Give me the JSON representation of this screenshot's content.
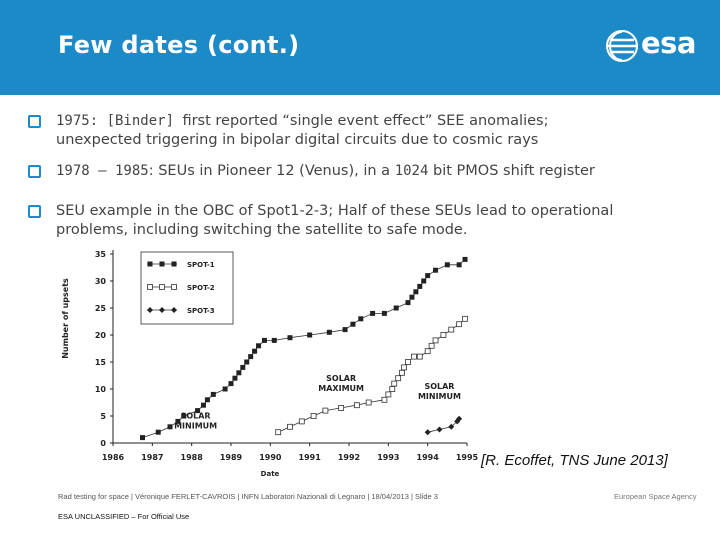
{
  "slide": {
    "title": "Few dates (cont.)",
    "logo_text": "esa",
    "bullets": [
      {
        "lines": [
          [
            {
              "t": "1975: [Binder] ",
              "mono": true
            },
            {
              "t": "first reported “single event effect” SEE anomalies;",
              "mono": false
            }
          ],
          [
            {
              "t": "unexpected triggering in bipolar digital circuits due to cosmic rays",
              "mono": false
            }
          ]
        ]
      },
      {
        "lines": [
          [
            {
              "t": "1978 – 1985",
              "mono": true
            },
            {
              "t": ": SEUs in Pioneer 12 (Venus), in a ",
              "mono": false
            },
            {
              "t": "1024",
              "mono": true
            },
            {
              "t": " bit PMOS shift register",
              "mono": false
            }
          ]
        ]
      },
      {
        "lines": [
          [
            {
              "t": "SEU example in the OBC of Spot1-2-3; Half of these SEUs lead to operational",
              "mono": false
            }
          ],
          [
            {
              "t": "problems, including switching the satellite to safe mode.",
              "mono": false
            }
          ]
        ]
      }
    ],
    "citation": "[R. Ecoffet, TNS June 2013]",
    "footer_left": "Rad testing for space | Véronique FERLET-CAVROIS | INFN Laboratori Nazionali di Legnaro | 18/04/2013 | Slide 3",
    "footer_right": "European Space Agency",
    "classification": "ESA UNCLASSIFIED – For Official Use",
    "colors": {
      "header": "#1d8ac8",
      "bullet_box": "#1d8ac8",
      "text": "#444444"
    },
    "icons": {
      "logo": "esa-logo-icon",
      "bullet": "square-bullet-icon"
    }
  },
  "chart_data": {
    "type": "line",
    "xlabel": "Date",
    "ylabel": "Number of upsets",
    "x_tick_labels": [
      "1986",
      "1987",
      "1988",
      "1989",
      "1990",
      "1991",
      "1992",
      "1993",
      "1994",
      "1995"
    ],
    "xlim": [
      1986,
      1995
    ],
    "ylim": [
      0,
      35
    ],
    "y_tick_labels": [
      "0",
      "5",
      "10",
      "15",
      "20",
      "25",
      "30",
      "35"
    ],
    "legend_position": "top-left",
    "grid": false,
    "annotations": [
      {
        "text": "SOLAR\nMINIMUM",
        "x": 1988.1,
        "y": 4.5
      },
      {
        "text": "SOLAR\nMAXIMUM",
        "x": 1991.8,
        "y": 11.5
      },
      {
        "text": "SOLAR\nMINIMUM",
        "x": 1994.3,
        "y": 10
      }
    ],
    "series": [
      {
        "name": "SPOT-1",
        "marker": "square-filled",
        "points": [
          [
            1986.75,
            1
          ],
          [
            1987.15,
            2
          ],
          [
            1987.45,
            3
          ],
          [
            1987.65,
            4
          ],
          [
            1987.8,
            5
          ],
          [
            1988.15,
            6
          ],
          [
            1988.3,
            7
          ],
          [
            1988.4,
            8
          ],
          [
            1988.55,
            9
          ],
          [
            1988.85,
            10
          ],
          [
            1989.0,
            11
          ],
          [
            1989.1,
            12
          ],
          [
            1989.2,
            13
          ],
          [
            1989.3,
            14
          ],
          [
            1989.4,
            15
          ],
          [
            1989.5,
            16
          ],
          [
            1989.6,
            17
          ],
          [
            1989.7,
            18
          ],
          [
            1989.85,
            19
          ],
          [
            1990.1,
            19
          ],
          [
            1990.5,
            19.5
          ],
          [
            1991.0,
            20
          ],
          [
            1991.5,
            20.5
          ],
          [
            1991.9,
            21
          ],
          [
            1992.1,
            22
          ],
          [
            1992.3,
            23
          ],
          [
            1992.6,
            24
          ],
          [
            1992.9,
            24
          ],
          [
            1993.2,
            25
          ],
          [
            1993.5,
            26
          ],
          [
            1993.6,
            27
          ],
          [
            1993.7,
            28
          ],
          [
            1993.8,
            29
          ],
          [
            1993.9,
            30
          ],
          [
            1994.0,
            31
          ],
          [
            1994.2,
            32
          ],
          [
            1994.5,
            33
          ],
          [
            1994.8,
            33
          ],
          [
            1994.95,
            34
          ]
        ]
      },
      {
        "name": "SPOT-2",
        "marker": "square-open",
        "points": [
          [
            1990.2,
            2
          ],
          [
            1990.5,
            3
          ],
          [
            1990.8,
            4
          ],
          [
            1991.1,
            5
          ],
          [
            1991.4,
            6
          ],
          [
            1991.8,
            6.5
          ],
          [
            1992.2,
            7
          ],
          [
            1992.5,
            7.5
          ],
          [
            1992.9,
            8
          ],
          [
            1993.0,
            9
          ],
          [
            1993.1,
            10
          ],
          [
            1993.15,
            11
          ],
          [
            1993.25,
            12
          ],
          [
            1993.35,
            13
          ],
          [
            1993.4,
            14
          ],
          [
            1993.5,
            15
          ],
          [
            1993.65,
            16
          ],
          [
            1993.8,
            16
          ],
          [
            1994.0,
            17
          ],
          [
            1994.1,
            18
          ],
          [
            1994.2,
            19
          ],
          [
            1994.4,
            20
          ],
          [
            1994.6,
            21
          ],
          [
            1994.8,
            22
          ],
          [
            1994.95,
            23
          ]
        ]
      },
      {
        "name": "SPOT-3",
        "marker": "diamond-filled",
        "points": [
          [
            1994.0,
            2
          ],
          [
            1994.3,
            2.5
          ],
          [
            1994.6,
            3
          ],
          [
            1994.75,
            4
          ],
          [
            1994.8,
            4.5
          ]
        ]
      }
    ]
  }
}
